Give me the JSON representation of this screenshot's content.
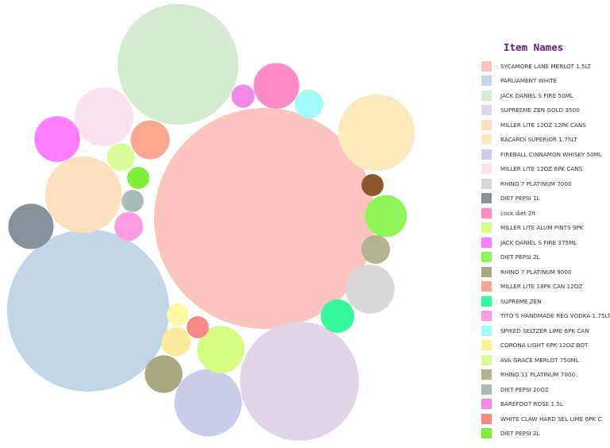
{
  "chart_data": {
    "type": "packed-bubble",
    "legend": {
      "title": "Item Names",
      "position": "right"
    },
    "items": [
      {
        "name": "SYCAMORE LANE MERLOT 1.5LT",
        "color": "#fbc4bf",
        "value": 100
      },
      {
        "name": "PARLIAMENT WHITE",
        "color": "#c3d6e8",
        "value": 54
      },
      {
        "name": "JACK DANIEL S FIRE 50ML",
        "color": "#d4ebd2",
        "value": 30
      },
      {
        "name": "SUPREEME ZEN GOLD 3500",
        "color": "#e3d5e8",
        "value": 29
      },
      {
        "name": "MILLER LITE 12OZ 12PK CANS",
        "color": "#fde0bd",
        "value": 12
      },
      {
        "name": "BACARDI SUPERIOR 1.75LT",
        "color": "#fde9bd",
        "value": 12
      },
      {
        "name": "FIREBALL CINNAMON WHISKY 50ML",
        "color": "#c9cde7",
        "value": 9.3
      },
      {
        "name": "MILLER LITE 12OZ 6PK CANS",
        "color": "#fbe0ee",
        "value": 7.1
      },
      {
        "name": "RHINO 7 PLATINUM 7000",
        "color": "#d8d8d8",
        "value": 4.9
      },
      {
        "name": "DIET PEPSI 1L",
        "color": "#86919a",
        "value": 4.2
      },
      {
        "name": "cock diet 2lt",
        "color": "#fd8cc6",
        "value": 4.3
      },
      {
        "name": "MILLER LITE ALUM PINTS 9PK",
        "color": "#d7fc83",
        "value": 4.6
      },
      {
        "name": "JACK DANIEL S FIRE 375ML",
        "color": "#fe7ffd",
        "value": 4.3
      },
      {
        "name": "DIET PEPSI 2L",
        "color": "#8ef558",
        "value": 3.6
      },
      {
        "name": "RHINO 7 PLATINUM 9000",
        "color": "#a9a87f",
        "value": 2.9
      },
      {
        "name": "MILLER LITE 18PK CAN 12OZ",
        "color": "#fca791",
        "value": 3.1
      },
      {
        "name": "SUPREME ZEN",
        "color": "#35fa9c",
        "value": 2.3
      },
      {
        "name": "TITO S HANDMADE REG VODKA 1.75LT",
        "color": "#fb9ce5",
        "value": 1.7
      },
      {
        "name": "SPIKED SELTZER LIME 6PK CAN",
        "color": "#a3fbf9",
        "value": 1.7
      },
      {
        "name": "CORONA LIGHT 6PK 12OZ BOT",
        "color": "#fdf095",
        "value": 1.7
      },
      {
        "name": "AVA GRACE MERLOT 750ML",
        "color": "#dbfb9a",
        "value": 1.6
      },
      {
        "name": "RHINO 11 PLATINUM 7000",
        "color": "#b3b392",
        "value": 1.7
      },
      {
        "name": "DIET PEPSI 20OZ",
        "color": "#a8bcba",
        "value": 1.0
      },
      {
        "name": "BAREFOOT ROSE 1.5L",
        "color": "#f18be9",
        "value": 1.1
      },
      {
        "name": "WHITE CLAW HARD SEL LIME 6PK C",
        "color": "#f78a85",
        "value": 1.0
      },
      {
        "name": "DIET PEPSI 2L",
        "color": "#7ef03a",
        "value": 1.0
      }
    ],
    "unlabeled_bubbles": [
      {
        "color": "#8b5a2b",
        "value": 1.0
      },
      {
        "color": "#fdf8a5",
        "value": 1.0
      },
      {
        "color": "#fde99b",
        "value": 1.6
      }
    ]
  }
}
